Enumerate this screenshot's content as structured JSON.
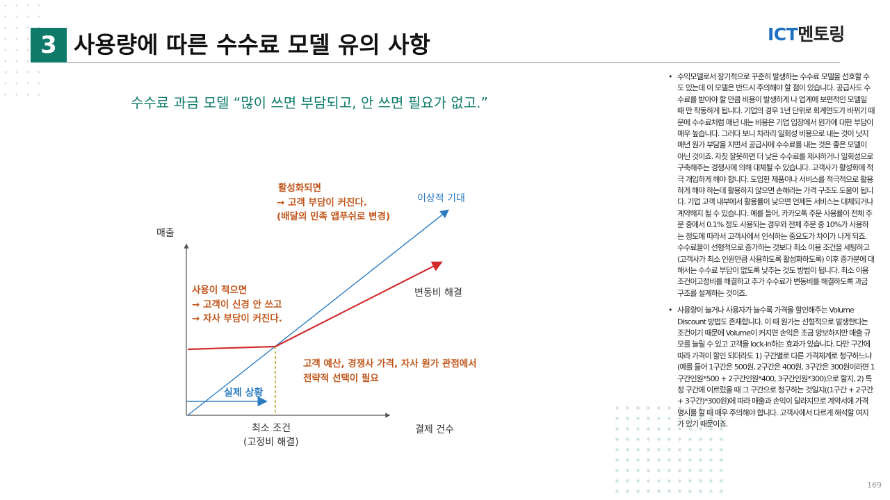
{
  "header": {
    "section_number": "3",
    "title": "사용량에 따른 수수료 모델 유의 사항",
    "logo_ict": "ICT",
    "logo_rest": "멘토링"
  },
  "subtitle": "수수료 과금 모델 “많이 쓰면 부담되고, 안 쓰면 필요가 없고.”",
  "diagram": {
    "y_axis_label": "매출",
    "x_axis_label": "결제 건수",
    "x_marker_label_line1": "최소 조건",
    "x_marker_label_line2": "(고정비 해결)",
    "ideal_label": "이상적 기대",
    "variable_label": "변동비 해결",
    "actual_label": "실제 상황",
    "active_callout": [
      "활성화되면",
      "→ 고객 부담이 커진다.",
      "(배달의 민족 앱푸쉬로 변경)"
    ],
    "low_usage_callout": [
      "사용이 적으면",
      "→ 고객이 신경 안 쓰고",
      "→ 자사 부담이 커진다."
    ],
    "strategy_callout": [
      "고객 예산, 경쟁사 가격, 자사 원가 관점에서",
      "전략적 선택이 필요"
    ],
    "colors": {
      "blue": "#2a7bbf",
      "red": "#d22b2b",
      "orange": "#c0561b",
      "teal": "#0f7a6a",
      "marker": "#b8a020"
    }
  },
  "notes": [
    "수익모델로서 장기적으로 꾸준히 발생하는 수수료 모델을 선호할 수도 있는데 이 모델은 반드시 주의해야 할 점이 있습니다. 공급사도 수수료를 받아야 할 만큼 비용이 발생하게 나 업계에 보편적인 모델일 때 만 작동하게 됩니다. 기업의 경우 1년 단위로 회계연도가 바뀌기 때문에 수수료처럼 매년 내는 비용은 기업 입장에서 원가에 대한 부담이 매우 높습니다. 그러다 보니 차라리 일회성 비용으로 내는 것이 낫지 매년 원가 부담을 지면서 공급사에 수수료를 내는 것은 좋은 모델이 아닌 것이죠. 자칫 잘못하면 더 낮은 수수료를 제시하거나 일회성으로 구축해주는 경쟁사에 의해 대체될 수 있습니다. 고객사가 활성화에 적극 개입하게 해야 합니다. 도입한 제품이나 서비스를 적극적으로 활용하게 해야 하는데 활용하지 않으면 손해라는 가격 구조도 도움이 됩니다. 기업 고객 내부에서 활용률이 낮으면 언제든 서비스는 대체되거나 계약해지 될 수 있습니다. 예를 들어, 카카오톡 주문 사용률이 전체 주문 중에서 0.1% 정도 사용되는 경우와 전체 주문 중 10%가 사용하는 정도에 따라서 고객사에서 인식하는 중요도가 차이가 나게 되죠. 수수료율이 선형적으로 증가하는 것보다 최소 이용 조건을 세팅하고(고객사가 최소 인원만큼 사용하도록 활성화하도록) 이후 증가분에 대해서는 수수료 부담이 없도록 낮추는 것도 방법이 됩니다. 최소 이용 조건이고정비를 해결하고 추가 수수료가 변동비를 해결하도록 과금 구조를 설계하는 것이죠.",
    "사용량이 늘거나 사용자가 늘수록 가격을 할인해주는 Volume Discount 방법도 존재합니다. 이 때 원가는 선형적으로 발생한다는 조건이기 때문에 Volume이 커지면 손익은 조금 양보하지만 매출 규모를 늘릴 수 있고 고객을 lock-in하는 효과가 있습니다. 다만 구간에 따라 가격이 할인 되더라도 1) 구간별로 다른 가격체계로 청구하느냐(예를 들어 1구간은 500원, 2구간은 400원, 3구간은 300원이라면 1구간인원*500 + 2구간인원*400, 3구간인원*300)으로 할지, 2) 특정 구간에 이르렀을 때 그 구간으로 청구하는 것일지((1구간 + 2구간 + 3구간)*300원)에 따라 매출과 손익이 달라지므로 계약서에 가격 명시를 할 때 매우 주의해야 합니다. 고객사에서 다르게 해석할 여지가 있기 때문이죠."
  ],
  "page_number": "169"
}
